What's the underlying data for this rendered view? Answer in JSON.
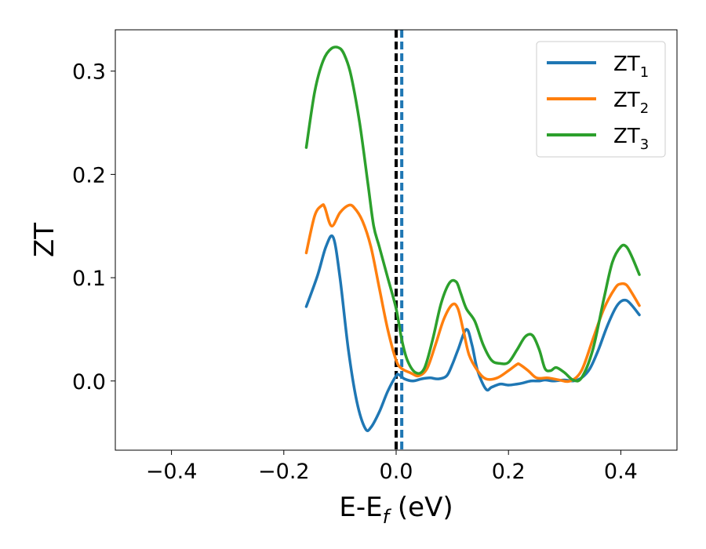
{
  "chart_data": {
    "type": "line",
    "xlabel": "E-E",
    "xlabel_sub": "f",
    "xlabel_unit": " (eV)",
    "ylabel": "ZT",
    "xlim": [
      -0.5,
      0.5
    ],
    "ylim": [
      -0.067,
      0.34
    ],
    "xticks": [
      -0.4,
      -0.2,
      0.0,
      0.2,
      0.4
    ],
    "xtick_labels": [
      "−0.4",
      "−0.2",
      "0.0",
      "0.2",
      "0.4"
    ],
    "yticks": [
      0.0,
      0.1,
      0.2,
      0.3
    ],
    "ytick_labels": [
      "0.0",
      "0.1",
      "0.2",
      "0.3"
    ],
    "grid": false,
    "legend_position": "top-right",
    "vertical_lines": [
      {
        "x": 0.0,
        "style": "dashed",
        "color": "#000000"
      },
      {
        "x": 0.01,
        "style": "dashed",
        "color": "#1f77b4"
      }
    ],
    "series": [
      {
        "name": "ZT",
        "name_sub": "1",
        "color": "#1f77b4",
        "x": [
          -0.16,
          -0.14,
          -0.125,
          -0.112,
          -0.1,
          -0.085,
          -0.07,
          -0.055,
          -0.045,
          -0.03,
          -0.015,
          0.0,
          0.005,
          0.015,
          0.03,
          0.045,
          0.06,
          0.075,
          0.09,
          0.1,
          0.11,
          0.125,
          0.135,
          0.145,
          0.16,
          0.17,
          0.185,
          0.2,
          0.215,
          0.225,
          0.24,
          0.255,
          0.265,
          0.28,
          0.3,
          0.315,
          0.33,
          0.345,
          0.36,
          0.375,
          0.39,
          0.4,
          0.41,
          0.42,
          0.433
        ],
        "values": [
          0.072,
          0.102,
          0.13,
          0.139,
          0.1,
          0.03,
          -0.02,
          -0.046,
          -0.045,
          -0.03,
          -0.01,
          0.005,
          0.006,
          0.002,
          0.0,
          0.002,
          0.003,
          0.002,
          0.005,
          0.016,
          0.03,
          0.05,
          0.035,
          0.01,
          -0.008,
          -0.006,
          -0.003,
          -0.004,
          -0.003,
          -0.002,
          0.0,
          0.0,
          0.001,
          0.0,
          0.001,
          0.0,
          0.003,
          0.012,
          0.03,
          0.052,
          0.07,
          0.077,
          0.078,
          0.073,
          0.064
        ]
      },
      {
        "name": "ZT",
        "name_sub": "2",
        "color": "#ff7f0e",
        "x": [
          -0.16,
          -0.145,
          -0.132,
          -0.127,
          -0.115,
          -0.1,
          -0.085,
          -0.075,
          -0.06,
          -0.045,
          -0.03,
          -0.015,
          0.0,
          0.01,
          0.025,
          0.04,
          0.055,
          0.07,
          0.085,
          0.1,
          0.11,
          0.12,
          0.13,
          0.145,
          0.16,
          0.18,
          0.2,
          0.215,
          0.22,
          0.235,
          0.25,
          0.27,
          0.29,
          0.31,
          0.33,
          0.35,
          0.37,
          0.39,
          0.4,
          0.41,
          0.42,
          0.433
        ],
        "values": [
          0.124,
          0.16,
          0.17,
          0.168,
          0.15,
          0.163,
          0.17,
          0.168,
          0.155,
          0.13,
          0.09,
          0.05,
          0.02,
          0.012,
          0.008,
          0.005,
          0.012,
          0.035,
          0.06,
          0.074,
          0.07,
          0.048,
          0.025,
          0.01,
          0.002,
          0.003,
          0.01,
          0.016,
          0.016,
          0.01,
          0.003,
          0.003,
          0.001,
          0.0,
          0.01,
          0.04,
          0.07,
          0.09,
          0.094,
          0.093,
          0.085,
          0.073
        ]
      },
      {
        "name": "ZT",
        "name_sub": "3",
        "color": "#2ca02c",
        "x": [
          -0.16,
          -0.145,
          -0.13,
          -0.115,
          -0.1,
          -0.09,
          -0.08,
          -0.065,
          -0.05,
          -0.04,
          -0.03,
          -0.015,
          0.0,
          0.01,
          0.02,
          0.035,
          0.05,
          0.065,
          0.08,
          0.095,
          0.107,
          0.115,
          0.125,
          0.14,
          0.155,
          0.17,
          0.185,
          0.2,
          0.215,
          0.23,
          0.243,
          0.255,
          0.265,
          0.275,
          0.285,
          0.3,
          0.315,
          0.33,
          0.35,
          0.37,
          0.385,
          0.4,
          0.41,
          0.42,
          0.433
        ],
        "values": [
          0.226,
          0.28,
          0.31,
          0.322,
          0.322,
          0.313,
          0.295,
          0.25,
          0.19,
          0.15,
          0.13,
          0.1,
          0.07,
          0.04,
          0.02,
          0.008,
          0.012,
          0.04,
          0.075,
          0.095,
          0.096,
          0.085,
          0.07,
          0.058,
          0.035,
          0.02,
          0.017,
          0.018,
          0.03,
          0.043,
          0.044,
          0.03,
          0.012,
          0.01,
          0.013,
          0.008,
          0.001,
          0.003,
          0.03,
          0.08,
          0.115,
          0.13,
          0.13,
          0.12,
          0.103
        ]
      }
    ]
  }
}
